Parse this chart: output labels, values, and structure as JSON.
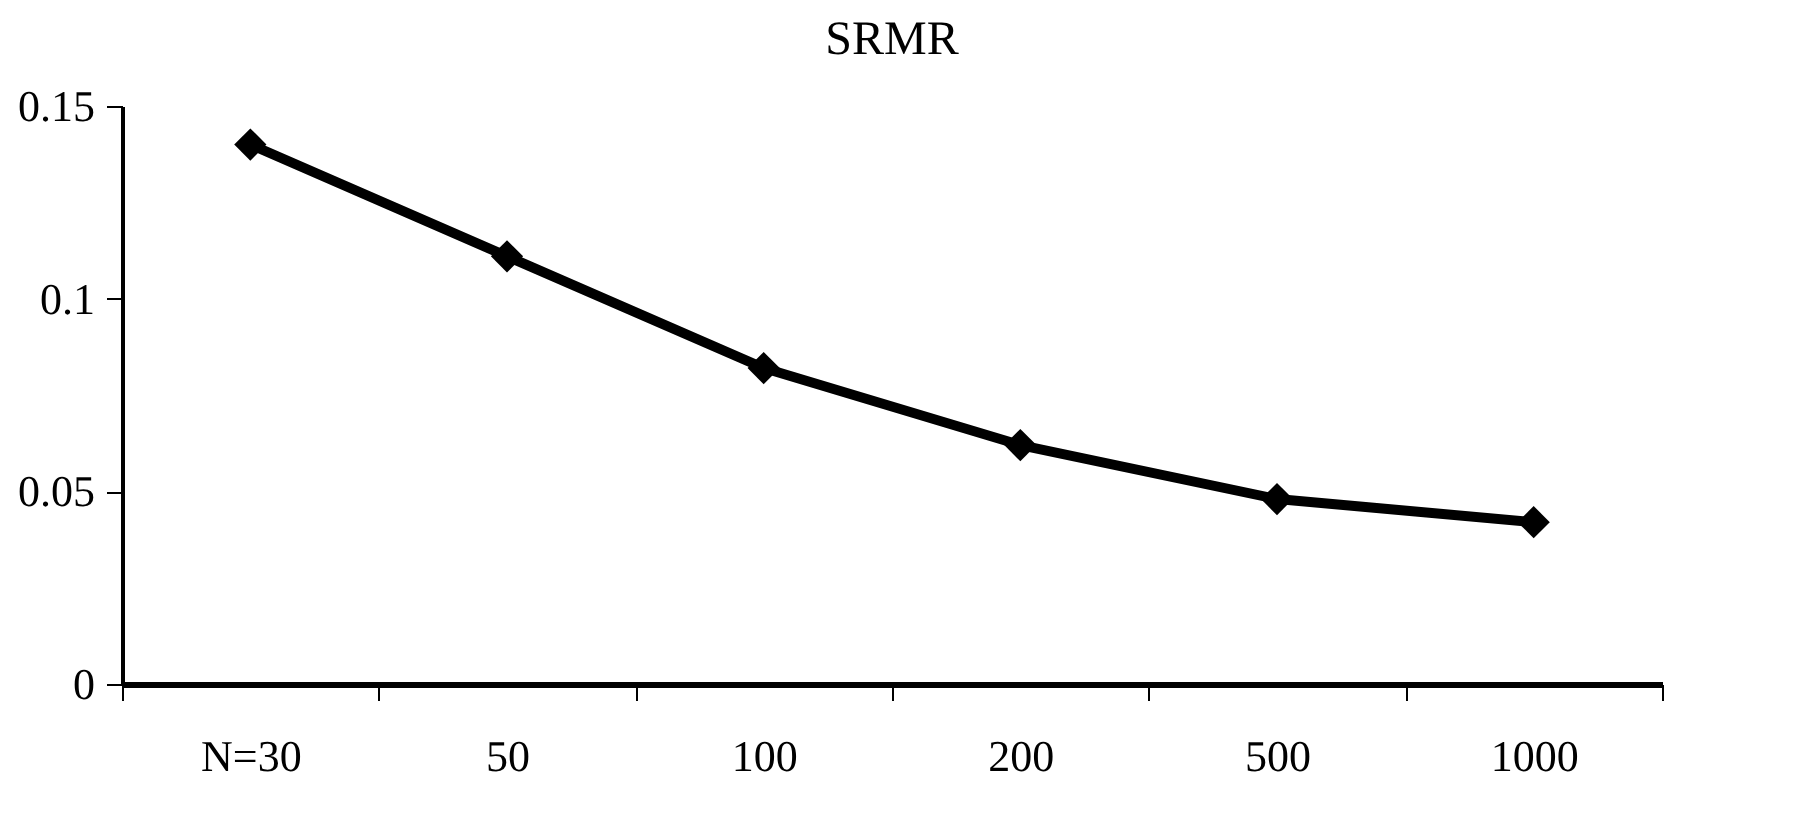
{
  "chart_data": {
    "type": "line",
    "title": "SRMR",
    "categories": [
      "N=30",
      "50",
      "100",
      "200",
      "500",
      "1000"
    ],
    "series": [
      {
        "color": "#000000",
        "values": [
          0.14,
          0.111,
          0.082,
          0.062,
          0.048,
          0.042
        ]
      }
    ],
    "ylim": [
      0,
      0.15
    ],
    "yticks": [
      0,
      0.05,
      0.1,
      0.15
    ],
    "grid": false,
    "marker": "diamond",
    "line_style": "solid"
  }
}
